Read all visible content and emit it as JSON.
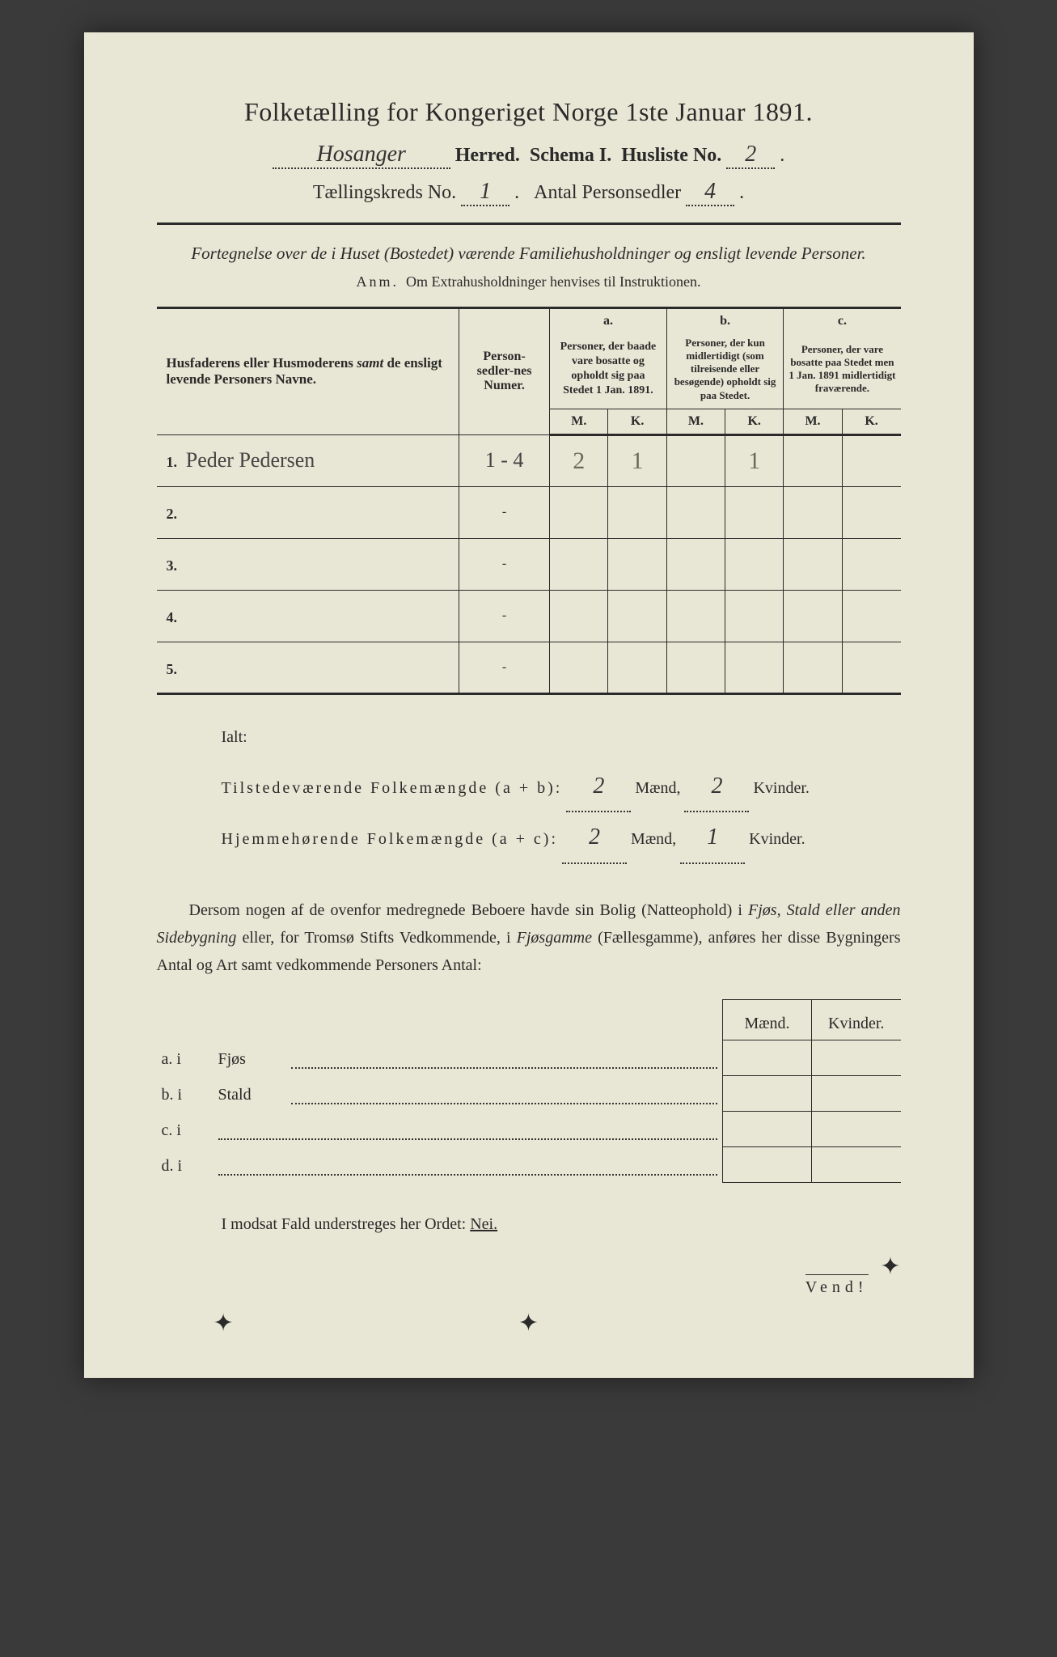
{
  "title": "Folketælling for Kongeriget Norge 1ste Januar 1891.",
  "herred_handwritten": "Hosanger",
  "line2": {
    "herred": "Herred.",
    "schema": "Schema I.",
    "husliste": "Husliste No.",
    "husliste_val": "2"
  },
  "line3": {
    "kreds": "Tællingskreds No.",
    "kreds_val": "1",
    "antal": "Antal Personsedler",
    "antal_val": "4"
  },
  "desc": "Fortegnelse over de i Huset (Bostedet) værende Familiehusholdninger og ensligt levende Personer.",
  "anm": {
    "label": "Anm.",
    "text": "Om Extrahusholdninger henvises til Instruktionen."
  },
  "headers": {
    "name": "Husfaderens eller Husmoderens samt de ensligt levende Personers Navne.",
    "numer": "Person-sedler-nes Numer.",
    "a_label": "a.",
    "a": "Personer, der baade vare bosatte og opholdt sig paa Stedet 1 Jan. 1891.",
    "b_label": "b.",
    "b": "Personer, der kun midlertidigt (som tilreisende eller besøgende) opholdt sig paa Stedet.",
    "c_label": "c.",
    "c": "Personer, der vare bosatte paa Stedet men 1 Jan. 1891 midlertidigt fraværende.",
    "M": "M.",
    "K": "K."
  },
  "rows": [
    {
      "n": "1.",
      "name": "Peder Pedersen",
      "numer": "1 - 4",
      "aM": "2",
      "aK": "1",
      "bM": "",
      "bK": "1",
      "cM": "",
      "cK": ""
    },
    {
      "n": "2.",
      "name": "",
      "numer": "-",
      "aM": "",
      "aK": "",
      "bM": "",
      "bK": "",
      "cM": "",
      "cK": ""
    },
    {
      "n": "3.",
      "name": "",
      "numer": "-",
      "aM": "",
      "aK": "",
      "bM": "",
      "bK": "",
      "cM": "",
      "cK": ""
    },
    {
      "n": "4.",
      "name": "",
      "numer": "-",
      "aM": "",
      "aK": "",
      "bM": "",
      "bK": "",
      "cM": "",
      "cK": ""
    },
    {
      "n": "5.",
      "name": "",
      "numer": "-",
      "aM": "",
      "aK": "",
      "bM": "",
      "bK": "",
      "cM": "",
      "cK": ""
    }
  ],
  "ialt": {
    "label": "Ialt:",
    "line1_a": "Tilstedeværende Folkemængde (a + b):",
    "line1_m": "2",
    "line1_k": "2",
    "line2_a": "Hjemmehørende Folkemængde (a + c):",
    "line2_m": "2",
    "line2_k": "1",
    "maend": "Mænd,",
    "kvinder": "Kvinder."
  },
  "para": "Dersom nogen af de ovenfor medregnede Beboere havde sin Bolig (Natteophold) i Fjøs, Stald eller anden Sidebygning eller, for Tromsø Stifts Vedkommende, i Fjøsgamme (Fællesgamme), anføres her disse Bygningers Antal og Art samt vedkommende Personers Antal:",
  "abcd": {
    "mk_m": "Mænd.",
    "mk_k": "Kvinder.",
    "a": "a.  i",
    "a_label": "Fjøs",
    "b": "b.  i",
    "b_label": "Stald",
    "c": "c.  i",
    "d": "d.  i"
  },
  "nei": {
    "text": "I modsat Fald understreges her Ordet:",
    "word": "Nei."
  },
  "vend": "Vend!"
}
